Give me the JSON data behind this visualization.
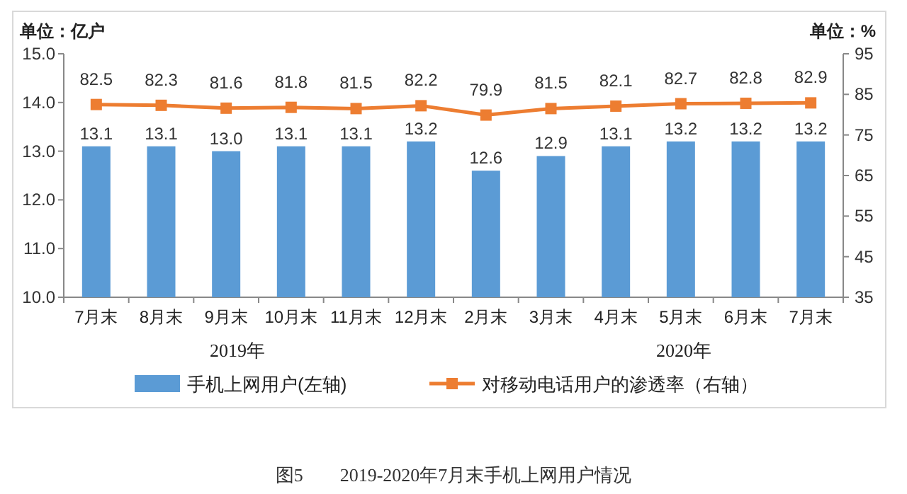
{
  "chart_data": {
    "type": "bar",
    "title": "图5　　2019-2020年7月末手机上网用户情况",
    "ylabel": "单位：亿户",
    "y2label": "单位：%",
    "categories": [
      "7月末",
      "8月末",
      "9月末",
      "10月末",
      "11月末",
      "12月末",
      "2月末",
      "3月末",
      "4月末",
      "5月末",
      "6月末",
      "7月末"
    ],
    "series": [
      {
        "name": "手机上网用户(左轴)",
        "color": "#5b9bd5",
        "values": [
          13.1,
          13.1,
          13.0,
          13.1,
          13.1,
          13.2,
          12.6,
          12.9,
          13.1,
          13.2,
          13.2,
          13.2
        ],
        "value_labels": [
          "13.1",
          "13.1",
          "13.0",
          "13.1",
          "13.1",
          "13.2",
          "12.6",
          "12.9",
          "13.1",
          "13.2",
          "13.2",
          "13.2"
        ]
      },
      {
        "name": "对移动电话用户的渗透率（右轴）",
        "type": "line",
        "axis": "y2",
        "color": "#ed7d31",
        "marker": "square",
        "values": [
          82.5,
          82.3,
          81.6,
          81.8,
          81.5,
          82.2,
          79.9,
          81.5,
          82.1,
          82.7,
          82.8,
          82.9
        ],
        "value_labels": [
          "82.5",
          "82.3",
          "81.6",
          "81.8",
          "81.5",
          "82.2",
          "79.9",
          "81.5",
          "82.1",
          "82.7",
          "82.8",
          "82.9"
        ]
      }
    ],
    "ylim": [
      10,
      15
    ],
    "yticks": [
      {
        "value": 10,
        "label": "10.0"
      },
      {
        "value": 11,
        "label": "11.0"
      },
      {
        "value": 12,
        "label": "12.0"
      },
      {
        "value": 13,
        "label": "13.0"
      },
      {
        "value": 14,
        "label": "14.0"
      },
      {
        "value": 15,
        "label": "15.0"
      }
    ],
    "y2lim": [
      35,
      95
    ],
    "y2ticks": [
      35,
      45,
      55,
      65,
      75,
      85,
      95
    ],
    "annotations": [
      "2019年",
      "2020年"
    ],
    "legend": "bottom",
    "grid": false
  }
}
